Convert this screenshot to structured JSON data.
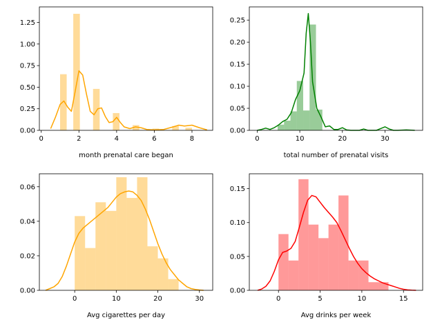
{
  "chart_data": [
    {
      "type": "histogram+kde",
      "xlabel": "month prenatal care began",
      "ylabel": "",
      "color": "#ffa500",
      "xlim": [
        -0.1,
        9.1
      ],
      "ylim": [
        0,
        1.43
      ],
      "xticks": [
        0,
        2,
        4,
        6,
        8
      ],
      "yticks": [
        0.0,
        0.25,
        0.5,
        0.75,
        1.0,
        1.25
      ],
      "ytick_labels": [
        "0.00",
        "0.25",
        "0.50",
        "0.75",
        "1.00",
        "1.25"
      ],
      "bins": [
        {
          "x0": 1.0,
          "x1": 1.35,
          "density": 0.65
        },
        {
          "x0": 1.35,
          "x1": 1.7,
          "density": 0
        },
        {
          "x0": 1.7,
          "x1": 2.05,
          "density": 1.35
        },
        {
          "x0": 2.05,
          "x1": 2.4,
          "density": 0
        },
        {
          "x0": 2.4,
          "x1": 2.75,
          "density": 0
        },
        {
          "x0": 2.75,
          "x1": 3.1,
          "density": 0.48
        },
        {
          "x0": 3.1,
          "x1": 3.45,
          "density": 0
        },
        {
          "x0": 3.45,
          "x1": 3.8,
          "density": 0
        },
        {
          "x0": 3.8,
          "x1": 4.15,
          "density": 0.2
        },
        {
          "x0": 4.15,
          "x1": 4.5,
          "density": 0
        },
        {
          "x0": 4.5,
          "x1": 4.85,
          "density": 0
        },
        {
          "x0": 4.85,
          "x1": 5.2,
          "density": 0.06
        },
        {
          "x0": 5.2,
          "x1": 5.55,
          "density": 0
        },
        {
          "x0": 5.55,
          "x1": 5.9,
          "density": 0
        },
        {
          "x0": 5.9,
          "x1": 6.25,
          "density": 0.02
        },
        {
          "x0": 6.25,
          "x1": 6.6,
          "density": 0
        },
        {
          "x0": 6.6,
          "x1": 6.95,
          "density": 0
        },
        {
          "x0": 6.95,
          "x1": 7.3,
          "density": 0.05
        },
        {
          "x0": 7.3,
          "x1": 7.65,
          "density": 0
        },
        {
          "x0": 7.65,
          "x1": 8.0,
          "density": 0.03
        }
      ],
      "kde": {
        "x": [
          0.5,
          0.75,
          1.0,
          1.2,
          1.4,
          1.6,
          1.8,
          2.0,
          2.2,
          2.4,
          2.6,
          2.8,
          3.0,
          3.2,
          3.4,
          3.6,
          3.8,
          4.0,
          4.2,
          4.4,
          4.7,
          5.0,
          5.3,
          5.6,
          6.0,
          6.5,
          7.0,
          7.3,
          7.6,
          8.0,
          8.4,
          8.8
        ],
        "y": [
          0.02,
          0.15,
          0.3,
          0.34,
          0.27,
          0.22,
          0.45,
          0.69,
          0.64,
          0.42,
          0.22,
          0.18,
          0.25,
          0.26,
          0.16,
          0.09,
          0.1,
          0.15,
          0.09,
          0.04,
          0.02,
          0.04,
          0.03,
          0.01,
          0.005,
          0.01,
          0.04,
          0.06,
          0.05,
          0.06,
          0.03,
          0.005
        ]
      }
    },
    {
      "type": "histogram+kde",
      "xlabel": "total number of prenatal visits",
      "ylabel": "",
      "color": "#008000",
      "xlim": [
        -1.85,
        38.85
      ],
      "ylim": [
        0,
        0.28
      ],
      "xticks": [
        0,
        10,
        20,
        30
      ],
      "yticks": [
        0.0,
        0.05,
        0.1,
        0.15,
        0.2,
        0.25
      ],
      "ytick_labels": [
        "0.00",
        "0.05",
        "0.10",
        "0.15",
        "0.20",
        "0.25"
      ],
      "bins": [
        {
          "x0": 4.8,
          "x1": 6.3,
          "density": 0.013
        },
        {
          "x0": 6.3,
          "x1": 7.8,
          "density": 0.022
        },
        {
          "x0": 7.8,
          "x1": 9.3,
          "density": 0.043
        },
        {
          "x0": 9.3,
          "x1": 10.8,
          "density": 0.112
        },
        {
          "x0": 10.8,
          "x1": 12.3,
          "density": 0.045
        },
        {
          "x0": 12.3,
          "x1": 13.8,
          "density": 0.24
        },
        {
          "x0": 13.8,
          "x1": 15.3,
          "density": 0.047
        }
      ],
      "kde": {
        "x": [
          0,
          1,
          2,
          3,
          4,
          5,
          6,
          7,
          8,
          9,
          10,
          11,
          11.5,
          12,
          12.5,
          13,
          14,
          15,
          16,
          17,
          18,
          19,
          20,
          21,
          22,
          24,
          25,
          26,
          27,
          28,
          29,
          30,
          31,
          32,
          33,
          35,
          37
        ],
        "y": [
          0.0,
          0.002,
          0.005,
          0.002,
          0.006,
          0.012,
          0.02,
          0.025,
          0.04,
          0.07,
          0.09,
          0.13,
          0.22,
          0.265,
          0.2,
          0.11,
          0.05,
          0.03,
          0.008,
          0.01,
          0.002,
          0.002,
          0.006,
          0.001,
          0.0,
          0.0,
          0.003,
          0.0,
          0.0,
          0.0,
          0.004,
          0.008,
          0.003,
          0.0,
          0.0,
          0.001,
          0.0
        ]
      }
    },
    {
      "type": "histogram+kde",
      "xlabel": "Avg cigarettes per day",
      "ylabel": "",
      "color": "#ffa500",
      "xlim": [
        -8.5,
        33.2
      ],
      "ylim": [
        0,
        0.0675
      ],
      "xticks": [
        0,
        10,
        20,
        30
      ],
      "yticks": [
        0.0,
        0.02,
        0.04,
        0.06
      ],
      "ytick_labels": [
        "0.00",
        "0.02",
        "0.04",
        "0.06"
      ],
      "bins": [
        {
          "x0": 0,
          "x1": 2.5,
          "density": 0.043
        },
        {
          "x0": 2.5,
          "x1": 5,
          "density": 0.0245
        },
        {
          "x0": 5,
          "x1": 7.5,
          "density": 0.051
        },
        {
          "x0": 7.5,
          "x1": 10,
          "density": 0.046
        },
        {
          "x0": 10,
          "x1": 12.5,
          "density": 0.0655
        },
        {
          "x0": 12.5,
          "x1": 15,
          "density": 0.0535
        },
        {
          "x0": 15,
          "x1": 17.5,
          "density": 0.0655
        },
        {
          "x0": 17.5,
          "x1": 20,
          "density": 0.0255
        },
        {
          "x0": 20,
          "x1": 22.5,
          "density": 0.0185
        },
        {
          "x0": 22.5,
          "x1": 25,
          "density": 0.0065
        }
      ],
      "kde": {
        "x": [
          -7,
          -6,
          -5,
          -4,
          -3,
          -2,
          -1,
          0,
          1,
          2,
          3,
          4,
          5,
          6,
          7,
          8,
          9,
          10,
          11,
          12,
          13,
          14,
          15,
          16,
          17,
          18,
          19,
          20,
          21,
          22,
          23,
          24,
          25,
          26,
          27,
          28,
          29,
          30,
          31
        ],
        "y": [
          0.0,
          0.001,
          0.002,
          0.004,
          0.008,
          0.014,
          0.021,
          0.028,
          0.033,
          0.036,
          0.038,
          0.04,
          0.042,
          0.044,
          0.046,
          0.048,
          0.051,
          0.054,
          0.056,
          0.057,
          0.0575,
          0.057,
          0.055,
          0.052,
          0.047,
          0.041,
          0.034,
          0.027,
          0.021,
          0.016,
          0.012,
          0.009,
          0.006,
          0.004,
          0.002,
          0.001,
          0.0005,
          0.0002,
          0.0
        ]
      }
    },
    {
      "type": "histogram+kde",
      "xlabel": "Avg drinks per week",
      "ylabel": "",
      "color": "#ff0000",
      "xlim": [
        -3.5,
        17.3
      ],
      "ylim": [
        0,
        0.172
      ],
      "xticks": [
        0,
        5,
        10,
        15
      ],
      "yticks": [
        0.0,
        0.05,
        0.1,
        0.15
      ],
      "ytick_labels": [
        "0.00",
        "0.05",
        "0.10",
        "0.15"
      ],
      "bins": [
        {
          "x0": 0,
          "x1": 1.2,
          "density": 0.083
        },
        {
          "x0": 1.2,
          "x1": 2.4,
          "density": 0.044
        },
        {
          "x0": 2.4,
          "x1": 3.6,
          "density": 0.164
        },
        {
          "x0": 3.6,
          "x1": 4.8,
          "density": 0.097
        },
        {
          "x0": 4.8,
          "x1": 6.0,
          "density": 0.077
        },
        {
          "x0": 6.0,
          "x1": 7.2,
          "density": 0.097
        },
        {
          "x0": 7.2,
          "x1": 8.4,
          "density": 0.14
        },
        {
          "x0": 8.4,
          "x1": 9.6,
          "density": 0.044
        },
        {
          "x0": 9.6,
          "x1": 10.8,
          "density": 0.044
        },
        {
          "x0": 10.8,
          "x1": 12.0,
          "density": 0.012
        },
        {
          "x0": 12.0,
          "x1": 13.2,
          "density": 0.012
        }
      ],
      "kde": {
        "x": [
          -2.5,
          -2,
          -1.5,
          -1,
          -0.5,
          0,
          0.5,
          1,
          1.5,
          2,
          2.5,
          3,
          3.5,
          4,
          4.5,
          5,
          5.5,
          6,
          6.5,
          7,
          7.5,
          8,
          8.5,
          9,
          9.5,
          10,
          10.5,
          11,
          11.5,
          12,
          12.5,
          13,
          13.5,
          14,
          14.5,
          15,
          15.5,
          16,
          16.5
        ],
        "y": [
          0.0,
          0.002,
          0.006,
          0.014,
          0.028,
          0.045,
          0.056,
          0.058,
          0.062,
          0.072,
          0.093,
          0.115,
          0.133,
          0.14,
          0.138,
          0.13,
          0.122,
          0.115,
          0.108,
          0.1,
          0.088,
          0.075,
          0.062,
          0.05,
          0.04,
          0.032,
          0.026,
          0.021,
          0.017,
          0.014,
          0.011,
          0.009,
          0.007,
          0.005,
          0.003,
          0.0015,
          0.0006,
          0.0002,
          0.0
        ]
      }
    }
  ]
}
